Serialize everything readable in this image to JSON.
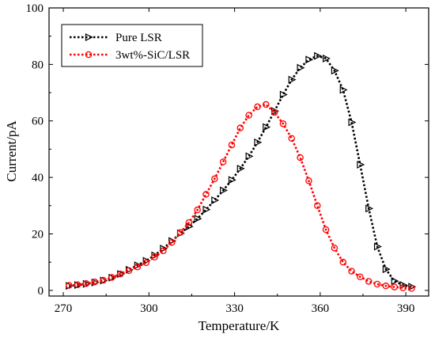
{
  "chart_data": {
    "type": "line",
    "xlabel": "Temperature/K",
    "ylabel": "Current/pA",
    "xlim": [
      265,
      398
    ],
    "ylim": [
      -2,
      100
    ],
    "xticks": [
      270,
      300,
      330,
      360,
      390
    ],
    "yticks": [
      0,
      20,
      40,
      60,
      80,
      100
    ],
    "grid": false,
    "legend_position": "top-left",
    "series": [
      {
        "name": "Pure LSR",
        "color": "#000000",
        "marker": "triangle-right",
        "x": [
          272,
          275,
          278,
          281,
          284,
          287,
          290,
          293,
          296,
          299,
          302,
          305,
          308,
          311,
          314,
          317,
          320,
          323,
          326,
          329,
          332,
          335,
          338,
          341,
          344,
          347,
          350,
          353,
          356,
          359,
          362,
          365,
          368,
          371,
          374,
          377,
          380,
          383,
          386,
          389,
          392
        ],
        "values": [
          1.6,
          1.9,
          2.3,
          2.8,
          3.5,
          4.5,
          5.8,
          7.3,
          8.9,
          10.5,
          12.4,
          14.8,
          17.5,
          20.2,
          22.6,
          25.4,
          28.6,
          31.9,
          35.4,
          39.1,
          43.1,
          47.5,
          52.4,
          57.8,
          63.5,
          69.3,
          74.6,
          78.8,
          81.7,
          83.0,
          82.1,
          77.8,
          71.0,
          59.5,
          44.5,
          29.0,
          15.5,
          7.5,
          3.3,
          1.9,
          1.3
        ]
      },
      {
        "name": "3wt%-SiC/LSR",
        "color": "#ff0000",
        "marker": "circle",
        "x": [
          272,
          275,
          278,
          281,
          284,
          287,
          290,
          293,
          296,
          299,
          302,
          305,
          308,
          311,
          314,
          317,
          320,
          323,
          326,
          329,
          332,
          335,
          338,
          341,
          344,
          347,
          350,
          353,
          356,
          359,
          362,
          365,
          368,
          371,
          374,
          377,
          380,
          383,
          386,
          389,
          392
        ],
        "values": [
          1.8,
          2.0,
          2.4,
          3.0,
          3.6,
          4.6,
          5.8,
          7.0,
          8.3,
          9.8,
          11.8,
          14.0,
          17.0,
          20.5,
          24.0,
          28.5,
          34.0,
          39.5,
          45.5,
          51.5,
          57.5,
          62.0,
          65.0,
          65.8,
          63.0,
          59.0,
          53.8,
          47.0,
          38.8,
          30.0,
          21.5,
          15.0,
          10.0,
          6.8,
          4.8,
          3.2,
          2.2,
          1.6,
          1.2,
          0.9,
          0.7
        ]
      }
    ]
  }
}
